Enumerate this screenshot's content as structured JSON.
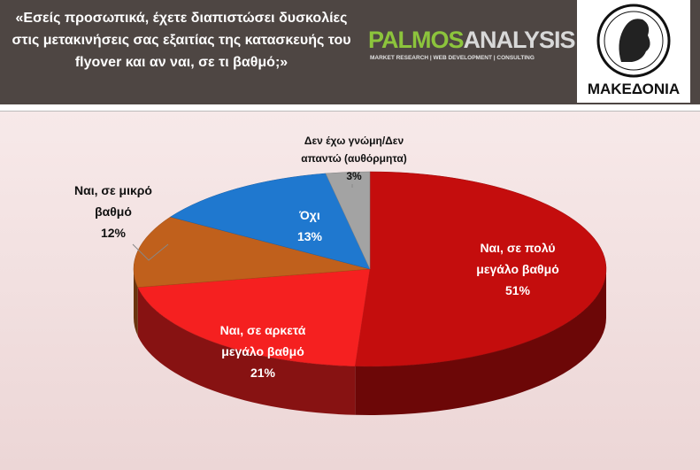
{
  "header": {
    "logo_left_part": "PALMOS",
    "logo_right_part": "ANALYSIS",
    "logo_tagline": "MARKET RESEARCH | WEB DEVELOPMENT | CONSULTING",
    "newspaper": "ΜΑΚΕΔΟΝΙΑ"
  },
  "chart_data": {
    "type": "pie",
    "title": "«Εσείς προσωπικά, έχετε διαπιστώσει δυσκολίες στις μετακινήσεις σας εξαιτίας της κατασκευής του flyover και αν ναι, σε τι βαθμό;»",
    "categories": [
      "Ναι, σε πολύ μεγάλο βαθμό",
      "Ναι, σε αρκετά μεγάλο βαθμό",
      "Ναι, σε μικρό βαθμό",
      "Όχι",
      "Δεν έχω γνώμη/Δεν απαντώ (αυθόρμητα)"
    ],
    "values": [
      51,
      21,
      12,
      13,
      3
    ],
    "value_labels": [
      "51%",
      "21%",
      "12%",
      "13%",
      "3%"
    ],
    "colors": [
      "#c40d0d",
      "#f52020",
      "#c0601c",
      "#1f78cf",
      "#a3a3a3"
    ]
  }
}
